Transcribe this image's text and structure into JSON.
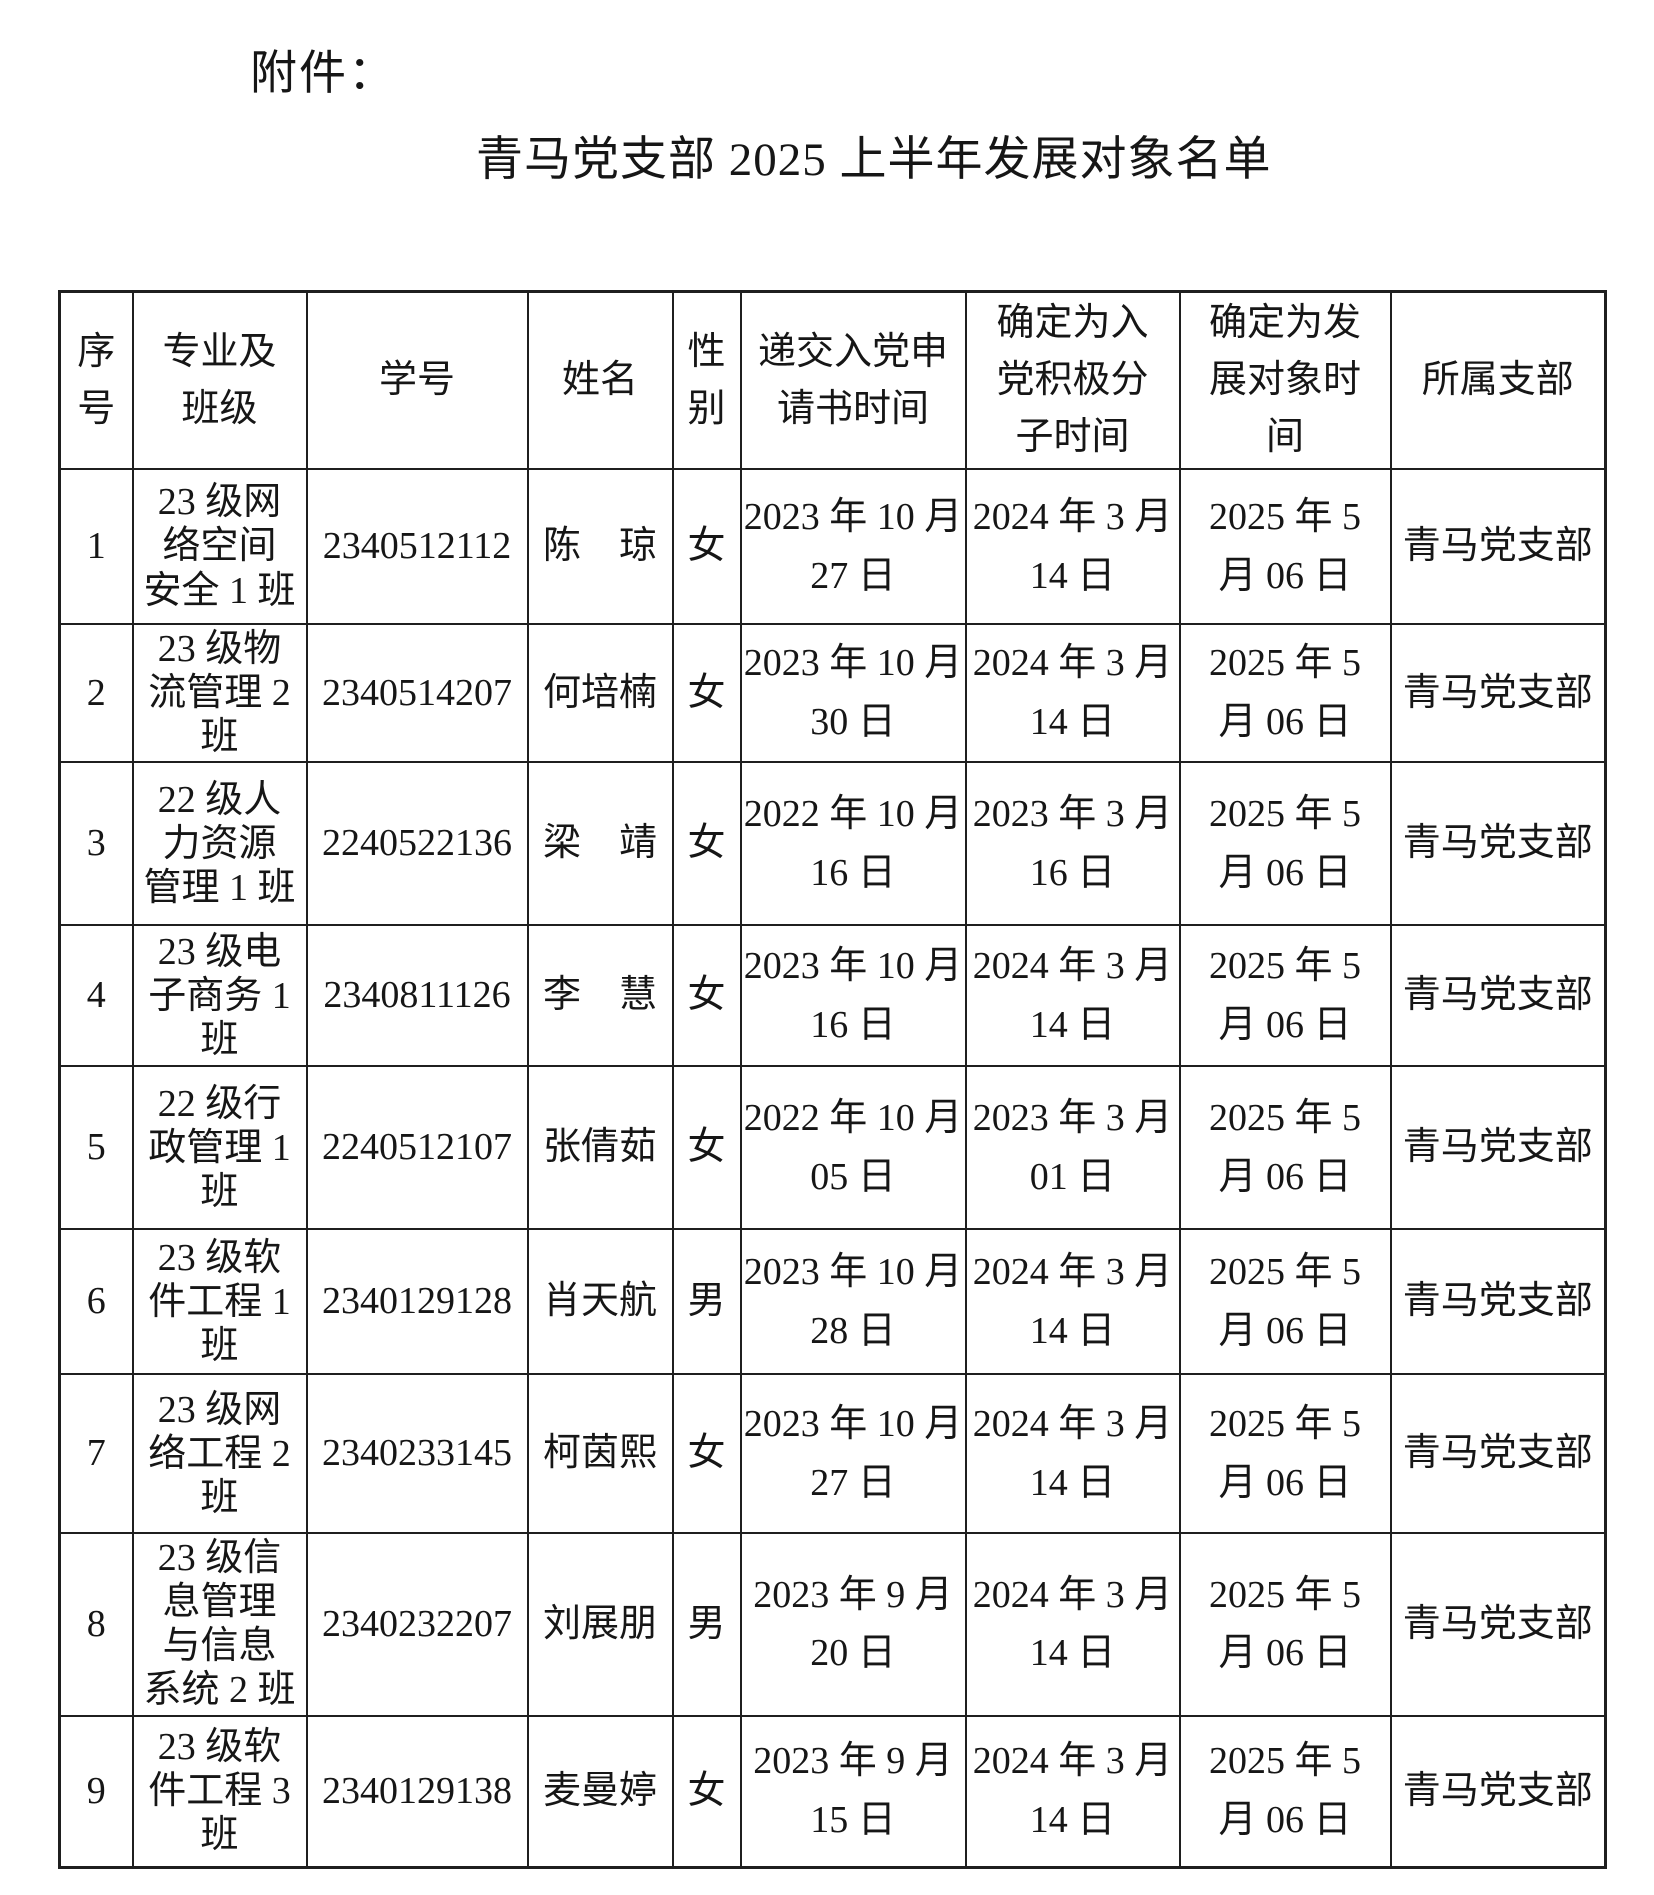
{
  "page": {
    "attachment_label": "附件：",
    "title": "青马党支部 2025 上半年发展对象名单"
  },
  "table": {
    "headers": [
      "序\n号",
      "专业及\n班级",
      "学号",
      "姓名",
      "性\n别",
      "递交入党申\n请书时间",
      "确定为入\n党积极分\n子时间",
      "确定为发\n展对象时\n间",
      "所属支部"
    ],
    "rows": [
      [
        "1",
        "23 级网\n络空间\n安全 1 班",
        "2340512112",
        "陈　琼",
        "女",
        "2023 年 10 月\n27 日",
        "2024 年 3 月\n14 日",
        "2025 年 5\n月 06 日",
        "青马党支部"
      ],
      [
        "2",
        "23 级物\n流管理 2\n班",
        "2340514207",
        "何培楠",
        "女",
        "2023 年 10 月\n30 日",
        "2024 年 3 月\n14 日",
        "2025 年 5\n月 06 日",
        "青马党支部"
      ],
      [
        "3",
        "22 级人\n力资源\n管理 1 班",
        "2240522136",
        "梁　靖",
        "女",
        "2022 年 10 月\n16 日",
        "2023 年 3 月\n16 日",
        "2025 年 5\n月 06 日",
        "青马党支部"
      ],
      [
        "4",
        "23 级电\n子商务 1\n班",
        "2340811126",
        "李　慧",
        "女",
        "2023 年 10 月\n16 日",
        "2024 年 3 月\n14 日",
        "2025 年 5\n月 06 日",
        "青马党支部"
      ],
      [
        "5",
        "22 级行\n政管理 1\n班",
        "2240512107",
        "张倩茹",
        "女",
        "2022 年 10 月\n05 日",
        "2023 年 3 月\n01 日",
        "2025 年 5\n月 06 日",
        "青马党支部"
      ],
      [
        "6",
        "23 级软\n件工程 1\n班",
        "2340129128",
        "肖天航",
        "男",
        "2023 年 10 月\n28 日",
        "2024 年 3 月\n14 日",
        "2025 年 5\n月 06 日",
        "青马党支部"
      ],
      [
        "7",
        "23 级网\n络工程 2\n班",
        "2340233145",
        "柯茵熙",
        "女",
        "2023 年 10 月\n27 日",
        "2024 年 3 月\n14 日",
        "2025 年 5\n月 06 日",
        "青马党支部"
      ],
      [
        "8",
        "23 级信\n息管理\n与信息\n系统 2 班",
        "2340232207",
        "刘展朋",
        "男",
        "2023 年 9 月\n20 日",
        "2024 年 3 月\n14 日",
        "2025 年 5\n月 06 日",
        "青马党支部"
      ],
      [
        "9",
        "23 级软\n件工程 3\n班",
        "2340129138",
        "麦曼婷",
        "女",
        "2023 年 9 月\n15 日",
        "2024 年 3 月\n14 日",
        "2025 年 5\n月 06 日",
        "青马党支部"
      ]
    ]
  }
}
